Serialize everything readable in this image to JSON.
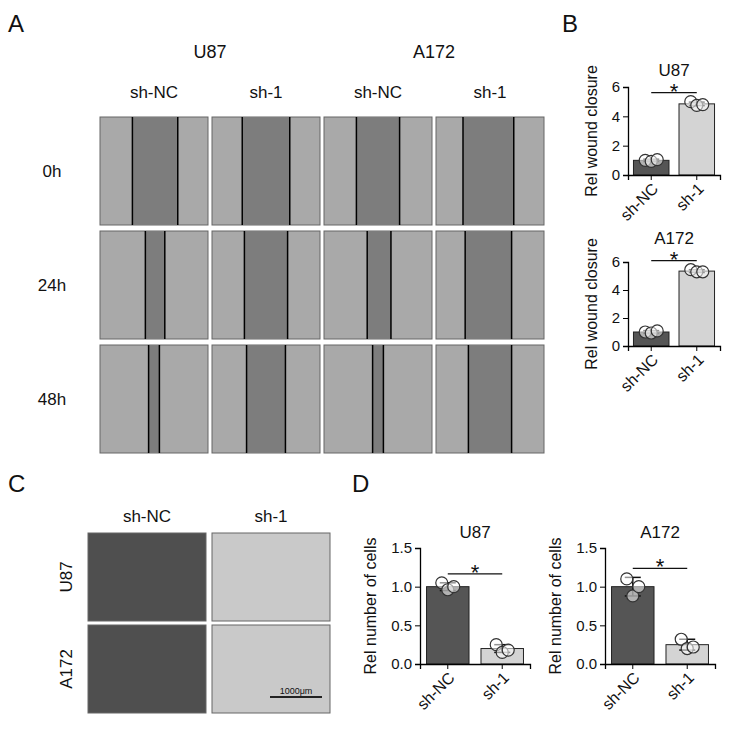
{
  "figure": {
    "letters": [
      "A",
      "B",
      "C",
      "D"
    ],
    "panel_a": {
      "groups": [
        "U87",
        "A172"
      ],
      "columns": [
        "sh-NC",
        "sh-1",
        "sh-NC",
        "sh-1"
      ],
      "rows": [
        "0h",
        "24h",
        "48h"
      ]
    },
    "panel_c": {
      "columns": [
        "sh-NC",
        "sh-1"
      ],
      "rows": [
        "U87",
        "A172"
      ],
      "scale_bar": "1000μm"
    }
  },
  "chart_data": [
    {
      "type": "bar",
      "title": "U87",
      "ylabel": "Rel wound closure",
      "categories": [
        "sh-NC",
        "sh-1"
      ],
      "values": [
        1.0,
        4.85
      ],
      "errors": [
        0.08,
        0.12
      ],
      "points": [
        [
          1.0,
          0.93,
          1.05
        ],
        [
          5.0,
          4.75,
          4.8
        ]
      ],
      "colors": [
        "#555555",
        "#d4d4d4"
      ],
      "ylim": [
        0,
        6
      ],
      "yticks": [
        0,
        2,
        4,
        6
      ],
      "annotation": "*"
    },
    {
      "type": "bar",
      "title": "A172",
      "ylabel": "Rel wound closure",
      "categories": [
        "sh-NC",
        "sh-1"
      ],
      "values": [
        1.0,
        5.35
      ],
      "errors": [
        0.1,
        0.1
      ],
      "points": [
        [
          1.0,
          0.93,
          1.08
        ],
        [
          5.45,
          5.3,
          5.3
        ]
      ],
      "colors": [
        "#555555",
        "#d4d4d4"
      ],
      "ylim": [
        0,
        6
      ],
      "yticks": [
        0,
        2,
        4,
        6
      ],
      "annotation": "*"
    },
    {
      "type": "bar",
      "title": "U87",
      "ylabel": "Rel number of cells",
      "categories": [
        "sh-NC",
        "sh-1"
      ],
      "values": [
        1.0,
        0.2
      ],
      "errors": [
        0.05,
        0.05
      ],
      "points": [
        [
          1.05,
          0.96,
          1.0
        ],
        [
          0.25,
          0.15,
          0.18
        ]
      ],
      "colors": [
        "#555555",
        "#d4d4d4"
      ],
      "ylim": [
        0,
        1.5
      ],
      "yticks": [
        {
          "value": 0,
          "label": "0.0"
        },
        {
          "value": 0.5,
          "label": "0.5"
        },
        {
          "value": 1,
          "label": "1.0"
        },
        {
          "value": 1.5,
          "label": "1.5"
        }
      ],
      "annotation": "*"
    },
    {
      "type": "bar",
      "title": "A172",
      "ylabel": "Rel number of cells",
      "categories": [
        "sh-NC",
        "sh-1"
      ],
      "values": [
        1.0,
        0.25
      ],
      "errors": [
        0.12,
        0.07
      ],
      "points": [
        [
          1.1,
          0.88,
          1.0
        ],
        [
          0.32,
          0.2,
          0.22
        ]
      ],
      "colors": [
        "#555555",
        "#d4d4d4"
      ],
      "ylim": [
        0,
        1.5
      ],
      "yticks": [
        {
          "value": 0,
          "label": "0.0"
        },
        {
          "value": 0.5,
          "label": "0.5"
        },
        {
          "value": 1,
          "label": "1.0"
        },
        {
          "value": 1.5,
          "label": "1.5"
        }
      ],
      "annotation": "*"
    }
  ]
}
